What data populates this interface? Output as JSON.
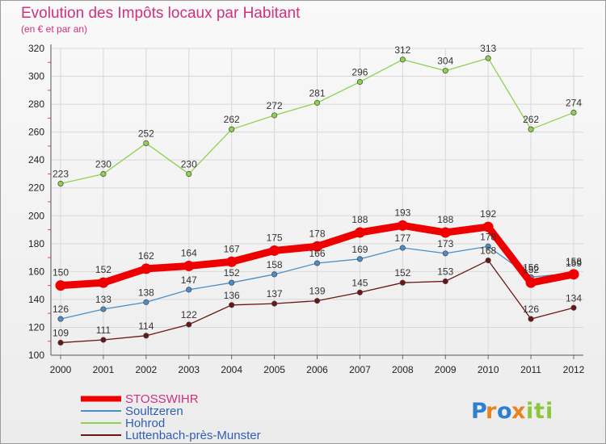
{
  "chart_data": {
    "type": "line",
    "title": "Evolution des Impôts locaux par Habitant",
    "subtitle": "(en € et par an)",
    "xlabel": "",
    "ylabel": "",
    "x": [
      "2000",
      "2001",
      "2002",
      "2003",
      "2004",
      "2005",
      "2006",
      "2007",
      "2008",
      "2009",
      "2010",
      "2011",
      "2012"
    ],
    "ylim": [
      100,
      320
    ],
    "yticks": [
      100,
      120,
      140,
      160,
      180,
      200,
      220,
      240,
      260,
      280,
      300,
      320
    ],
    "grid": true,
    "legend_position": "bottom-left",
    "series": [
      {
        "name": "Hohrod",
        "color": "#8fd14f",
        "values": [
          223,
          230,
          252,
          230,
          262,
          272,
          281,
          296,
          312,
          304,
          313,
          262,
          274
        ]
      },
      {
        "name": "Luttenbach-près-Munster",
        "color": "#6b1515",
        "values": [
          109,
          111,
          114,
          122,
          136,
          137,
          139,
          145,
          152,
          153,
          168,
          126,
          134
        ]
      },
      {
        "name": "Soultzeren",
        "color": "#4b8ec7",
        "values": [
          126,
          133,
          138,
          147,
          152,
          158,
          166,
          169,
          177,
          173,
          178,
          156,
          159
        ]
      },
      {
        "name": "STOSSWIHR",
        "color": "#ee0000",
        "values": [
          150,
          152,
          162,
          164,
          167,
          175,
          178,
          188,
          193,
          188,
          192,
          152,
          158
        ]
      }
    ],
    "legend_order": [
      "STOSSWIHR",
      "Soultzeren",
      "Hohrod",
      "Luttenbach-près-Munster"
    ]
  },
  "logo": {
    "text": "Proxiti",
    "colors": [
      "#2f7fd1",
      "#e8831f",
      "#2f7fd1",
      "#e8831f",
      "#8cc63f",
      "#8cc63f",
      "#8cc63f"
    ]
  }
}
